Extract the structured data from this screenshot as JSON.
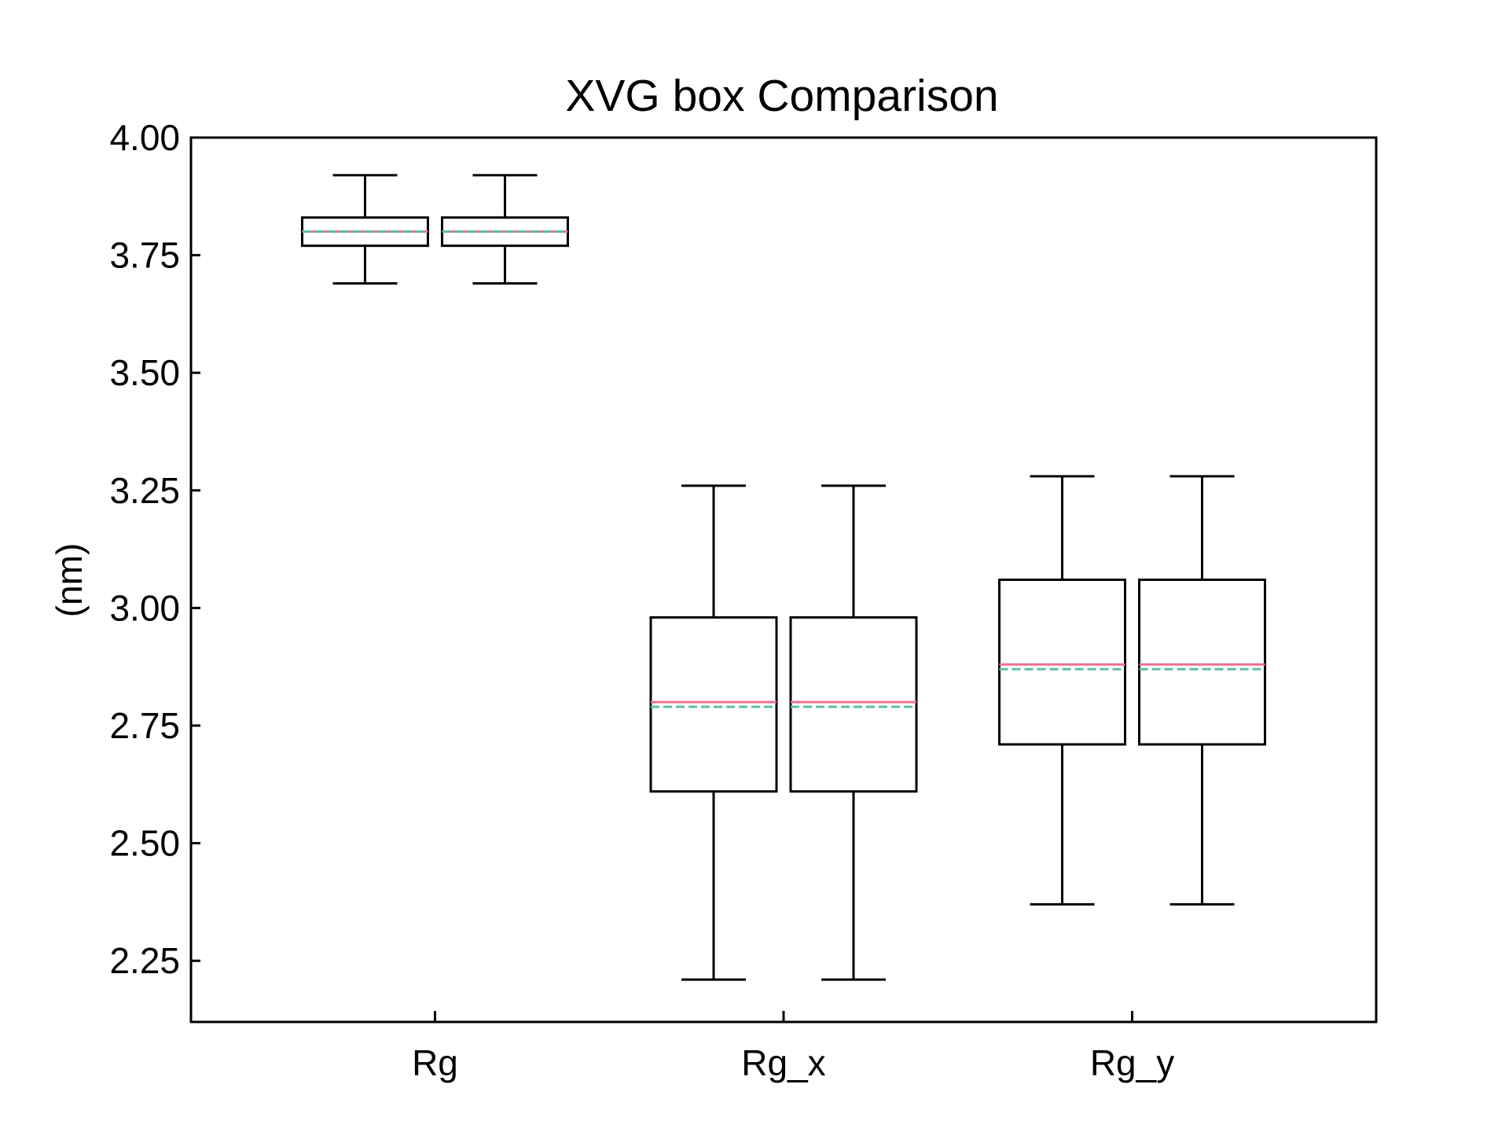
{
  "chart_data": {
    "type": "box",
    "title": "XVG box Comparison",
    "xlabel": "",
    "ylabel": "(nm)",
    "ylim": [
      2.12,
      4.0
    ],
    "yticks": [
      "2.25",
      "2.50",
      "2.75",
      "3.00",
      "3.25",
      "3.50",
      "3.75",
      "4.00"
    ],
    "categories": [
      "Rg",
      "Rg_x",
      "Rg_y"
    ],
    "grid": false,
    "legend": "none",
    "series": [
      {
        "boxes": [
          {
            "category": "Rg",
            "whisker_low": 3.69,
            "q1": 3.77,
            "median": 3.8,
            "mean": 3.8,
            "q3": 3.83,
            "whisker_high": 3.92
          },
          {
            "category": "Rg_x",
            "whisker_low": 2.21,
            "q1": 2.61,
            "median": 2.8,
            "mean": 2.79,
            "q3": 2.98,
            "whisker_high": 3.26
          },
          {
            "category": "Rg_y",
            "whisker_low": 2.37,
            "q1": 2.71,
            "median": 2.88,
            "mean": 2.87,
            "q3": 3.06,
            "whisker_high": 3.28
          }
        ]
      },
      {
        "boxes": [
          {
            "category": "Rg",
            "whisker_low": 3.69,
            "q1": 3.77,
            "median": 3.8,
            "mean": 3.8,
            "q3": 3.83,
            "whisker_high": 3.92
          },
          {
            "category": "Rg_x",
            "whisker_low": 2.21,
            "q1": 2.61,
            "median": 2.8,
            "mean": 2.79,
            "q3": 2.98,
            "whisker_high": 3.26
          },
          {
            "category": "Rg_y",
            "whisker_low": 2.37,
            "q1": 2.71,
            "median": 2.88,
            "mean": 2.87,
            "q3": 3.06,
            "whisker_high": 3.28
          }
        ]
      }
    ],
    "colors": {
      "box": "#000000",
      "median": "#f0708f",
      "mean": "#5cc1a0"
    }
  }
}
